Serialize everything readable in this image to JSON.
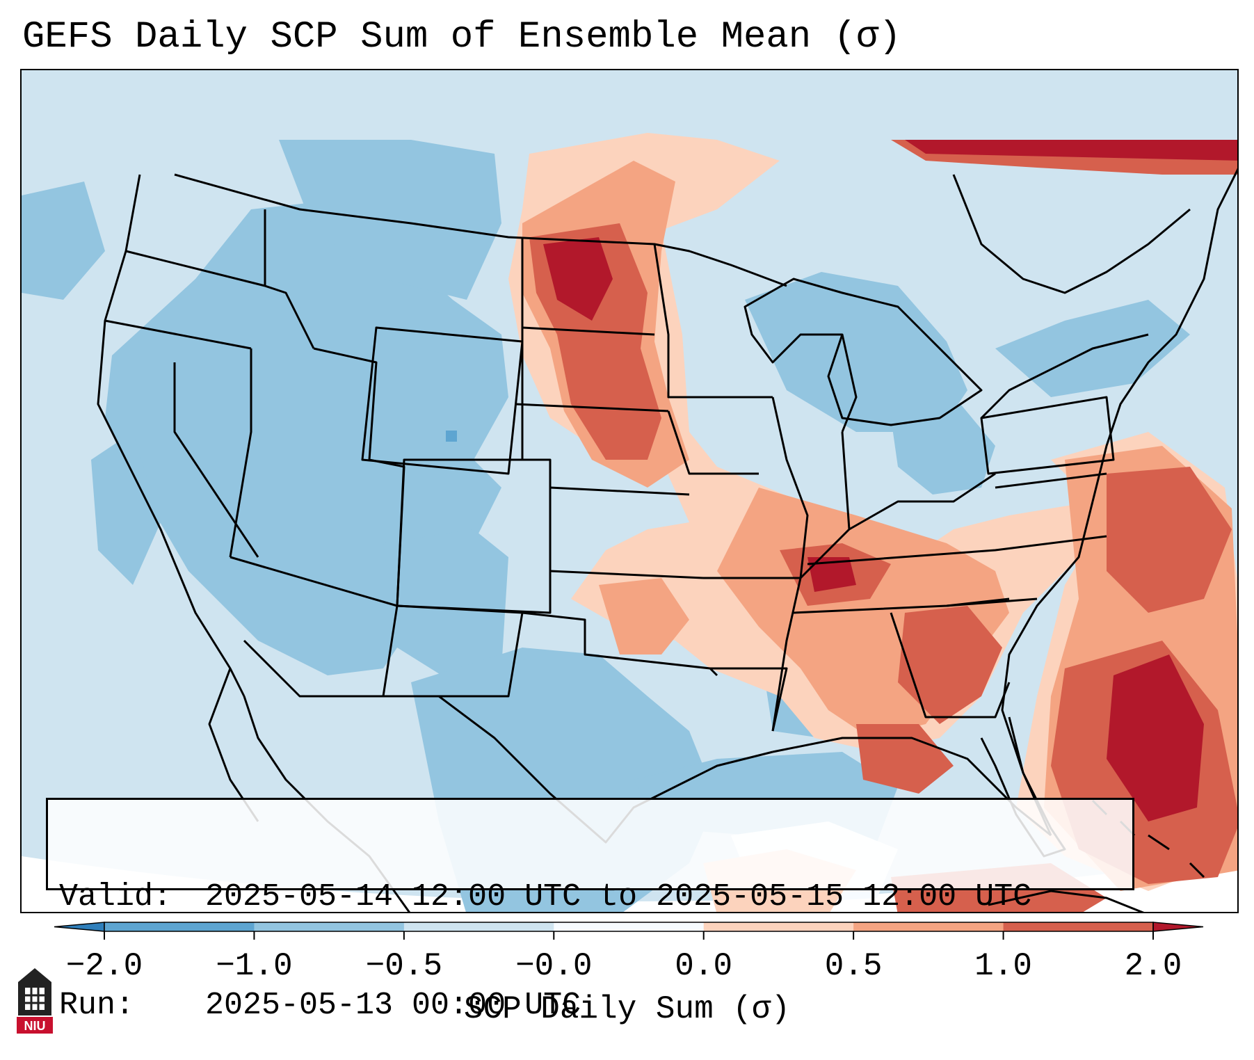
{
  "title": "GEFS Daily SCP Sum of Ensemble Mean (σ)",
  "valid_label": "Valid:",
  "valid_value": "2025-05-14 12:00 UTC to 2025-05-15 12:00 UTC",
  "run_label": "Run:",
  "run_value": "2025-05-13 00:00 UTC",
  "colorbar": {
    "label": "SCP Daily Sum (σ)",
    "ticks": [
      "−2.0",
      "−1.0",
      "−0.5",
      "−0.0",
      "0.0",
      "0.5",
      "1.0",
      "2.0"
    ],
    "colors": [
      "#2f7fbb",
      "#5ea5d1",
      "#93c5e0",
      "#cfe4f0",
      "#f7fbff",
      "#fcd3bd",
      "#f4a482",
      "#d6604d",
      "#b2182b"
    ]
  },
  "logo": {
    "text": "NIU",
    "icon": "niu-building-logo"
  },
  "map": {
    "projection": "lambert-conformal-conus",
    "features": [
      "state-borders",
      "country-borders",
      "coastlines"
    ]
  }
}
